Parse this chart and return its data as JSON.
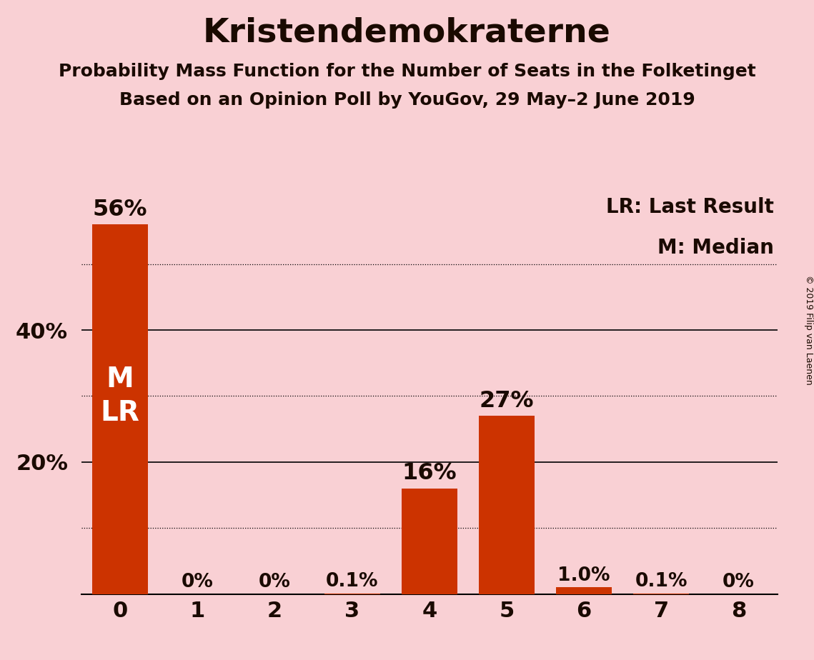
{
  "title": "Kristendemokraterne",
  "subtitle1": "Probability Mass Function for the Number of Seats in the Folketinget",
  "subtitle2": "Based on an Opinion Poll by YouGov, 29 May–2 June 2019",
  "copyright": "© 2019 Filip van Laenen",
  "categories": [
    0,
    1,
    2,
    3,
    4,
    5,
    6,
    7,
    8
  ],
  "values": [
    56.0,
    0.0,
    0.0,
    0.1,
    16.0,
    27.0,
    1.0,
    0.1,
    0.0
  ],
  "bar_color": "#cc3300",
  "background_color": "#f9d0d4",
  "label_texts": [
    "56%",
    "0%",
    "0%",
    "0.1%",
    "16%",
    "27%",
    "1.0%",
    "0.1%",
    "0%"
  ],
  "legend_lr": "LR: Last Result",
  "legend_m": "M: Median",
  "ytick_positions": [
    20,
    40
  ],
  "ytick_labels": [
    "20%",
    "40%"
  ],
  "solid_gridlines": [
    20,
    40
  ],
  "dotted_gridlines": [
    10,
    30,
    50
  ],
  "ylim": [
    0,
    62
  ],
  "title_fontsize": 34,
  "subtitle_fontsize": 18,
  "tick_fontsize": 22,
  "label_fontsize_large": 23,
  "label_fontsize_small": 19,
  "legend_fontsize": 20,
  "ml_fontsize": 28
}
